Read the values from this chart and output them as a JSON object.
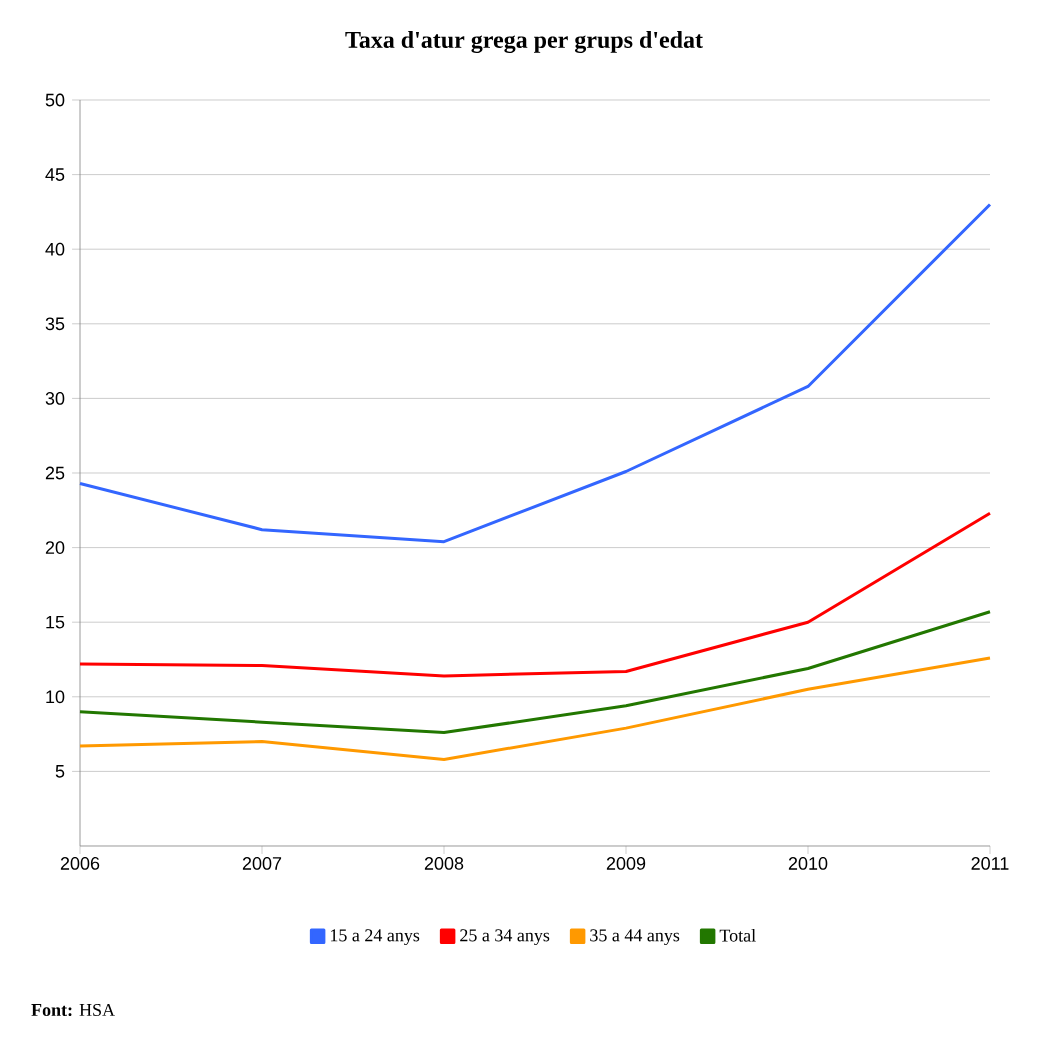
{
  "chart_data": {
    "type": "line",
    "title": "Taxa d'atur grega per grups d'edat",
    "x": [
      2006,
      2007,
      2008,
      2009,
      2010,
      2011
    ],
    "series": [
      {
        "name": "15 a 24 anys",
        "color": "#3366ff",
        "values": [
          24.3,
          21.2,
          20.4,
          25.1,
          30.8,
          43.0
        ]
      },
      {
        "name": "25 a 34 anys",
        "color": "#ff0000",
        "values": [
          12.2,
          12.1,
          11.4,
          11.7,
          15.0,
          22.3
        ]
      },
      {
        "name": "35 a 44 anys",
        "color": "#ff9900",
        "values": [
          6.7,
          7.0,
          5.8,
          7.9,
          10.5,
          12.6
        ]
      },
      {
        "name": "Total",
        "color": "#227700",
        "values": [
          9.0,
          8.3,
          7.6,
          9.4,
          11.9,
          15.7
        ]
      }
    ],
    "xlim": [
      2006,
      2011
    ],
    "xticks": [
      2006,
      2007,
      2008,
      2009,
      2010,
      2011
    ],
    "ylim": [
      0,
      50
    ],
    "yticks": [
      5,
      10,
      15,
      20,
      25,
      30,
      35,
      40,
      45,
      50
    ],
    "grid": "y",
    "legend": "bottom",
    "marker": "none",
    "line_style": "solid",
    "annotations": [
      "**Font:** HSA"
    ]
  }
}
